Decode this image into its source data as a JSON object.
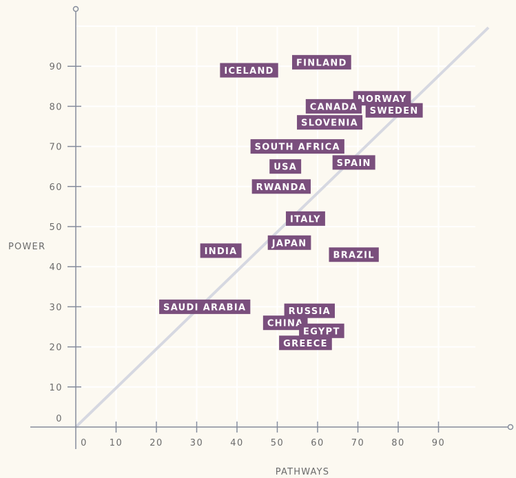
{
  "chart_data": {
    "type": "scatter",
    "xlabel": "PATHWAYS",
    "ylabel": "POWER",
    "xlim": [
      0,
      100
    ],
    "ylim": [
      0,
      100
    ],
    "x_ticks": [
      "0",
      "10",
      "20",
      "30",
      "40",
      "50",
      "60",
      "70",
      "80",
      "90"
    ],
    "y_ticks": [
      "0",
      "10",
      "20",
      "30",
      "40",
      "50",
      "60",
      "70",
      "80",
      "90"
    ],
    "grid": true,
    "reference_line": "diagonal",
    "label_color": "#7a4f7d",
    "points": [
      {
        "label": "FINLAND",
        "x": 61,
        "y": 91
      },
      {
        "label": "ICELAND",
        "x": 43,
        "y": 89
      },
      {
        "label": "NORWAY",
        "x": 76,
        "y": 82
      },
      {
        "label": "CANADA",
        "x": 64,
        "y": 80
      },
      {
        "label": "SWEDEN",
        "x": 79,
        "y": 79
      },
      {
        "label": "SLOVENIA",
        "x": 63,
        "y": 76
      },
      {
        "label": "SOUTH AFRICA",
        "x": 55,
        "y": 70
      },
      {
        "label": "USA",
        "x": 52,
        "y": 65
      },
      {
        "label": "SPAIN",
        "x": 69,
        "y": 66
      },
      {
        "label": "RWANDA",
        "x": 51,
        "y": 60
      },
      {
        "label": "ITALY",
        "x": 57,
        "y": 52
      },
      {
        "label": "JAPAN",
        "x": 53,
        "y": 46
      },
      {
        "label": "INDIA",
        "x": 36,
        "y": 44
      },
      {
        "label": "BRAZIL",
        "x": 69,
        "y": 43
      },
      {
        "label": "SAUDI ARABIA",
        "x": 32,
        "y": 30
      },
      {
        "label": "RUSSIA",
        "x": 58,
        "y": 29
      },
      {
        "label": "CHINA",
        "x": 52,
        "y": 26
      },
      {
        "label": "EGYPT",
        "x": 61,
        "y": 24
      },
      {
        "label": "GREECE",
        "x": 57,
        "y": 21
      }
    ]
  }
}
